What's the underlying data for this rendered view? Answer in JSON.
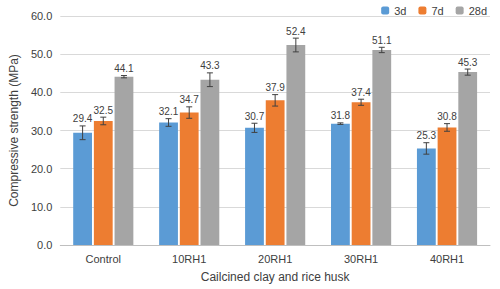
{
  "chart_data": {
    "type": "bar",
    "x_label": "Cailcined clay and rice husk",
    "y_label": "Compressive strength (MPa)",
    "categories": [
      "Control",
      "10RH1",
      "20RH1",
      "30RH1",
      "40RH1"
    ],
    "series": [
      {
        "name": "3d",
        "color": "#5b9bd5",
        "values": [
          29.4,
          32.1,
          30.7,
          31.8,
          25.3
        ],
        "errors": [
          1.8,
          1.0,
          1.2,
          0.2,
          1.5
        ]
      },
      {
        "name": "7d",
        "color": "#ed7d31",
        "values": [
          32.5,
          34.7,
          37.9,
          37.4,
          30.8
        ],
        "errors": [
          1.0,
          1.5,
          1.5,
          0.8,
          1.0
        ]
      },
      {
        "name": "28d",
        "color": "#a5a5a5",
        "values": [
          44.1,
          43.3,
          52.4,
          51.1,
          45.3
        ],
        "errors": [
          0.3,
          1.8,
          1.8,
          0.7,
          0.8
        ]
      }
    ],
    "ylim": [
      0,
      60
    ],
    "yticks": [
      {
        "value": 0,
        "label": "0.0"
      },
      {
        "value": 10,
        "label": "10.0"
      },
      {
        "value": 20,
        "label": "20.0"
      },
      {
        "value": 30,
        "label": "30.0"
      },
      {
        "value": 40,
        "label": "40.0"
      },
      {
        "value": 50,
        "label": "50.0"
      },
      {
        "value": 60,
        "label": "60.0"
      }
    ],
    "grid": true,
    "legend": "upper right",
    "data_labels": true
  }
}
